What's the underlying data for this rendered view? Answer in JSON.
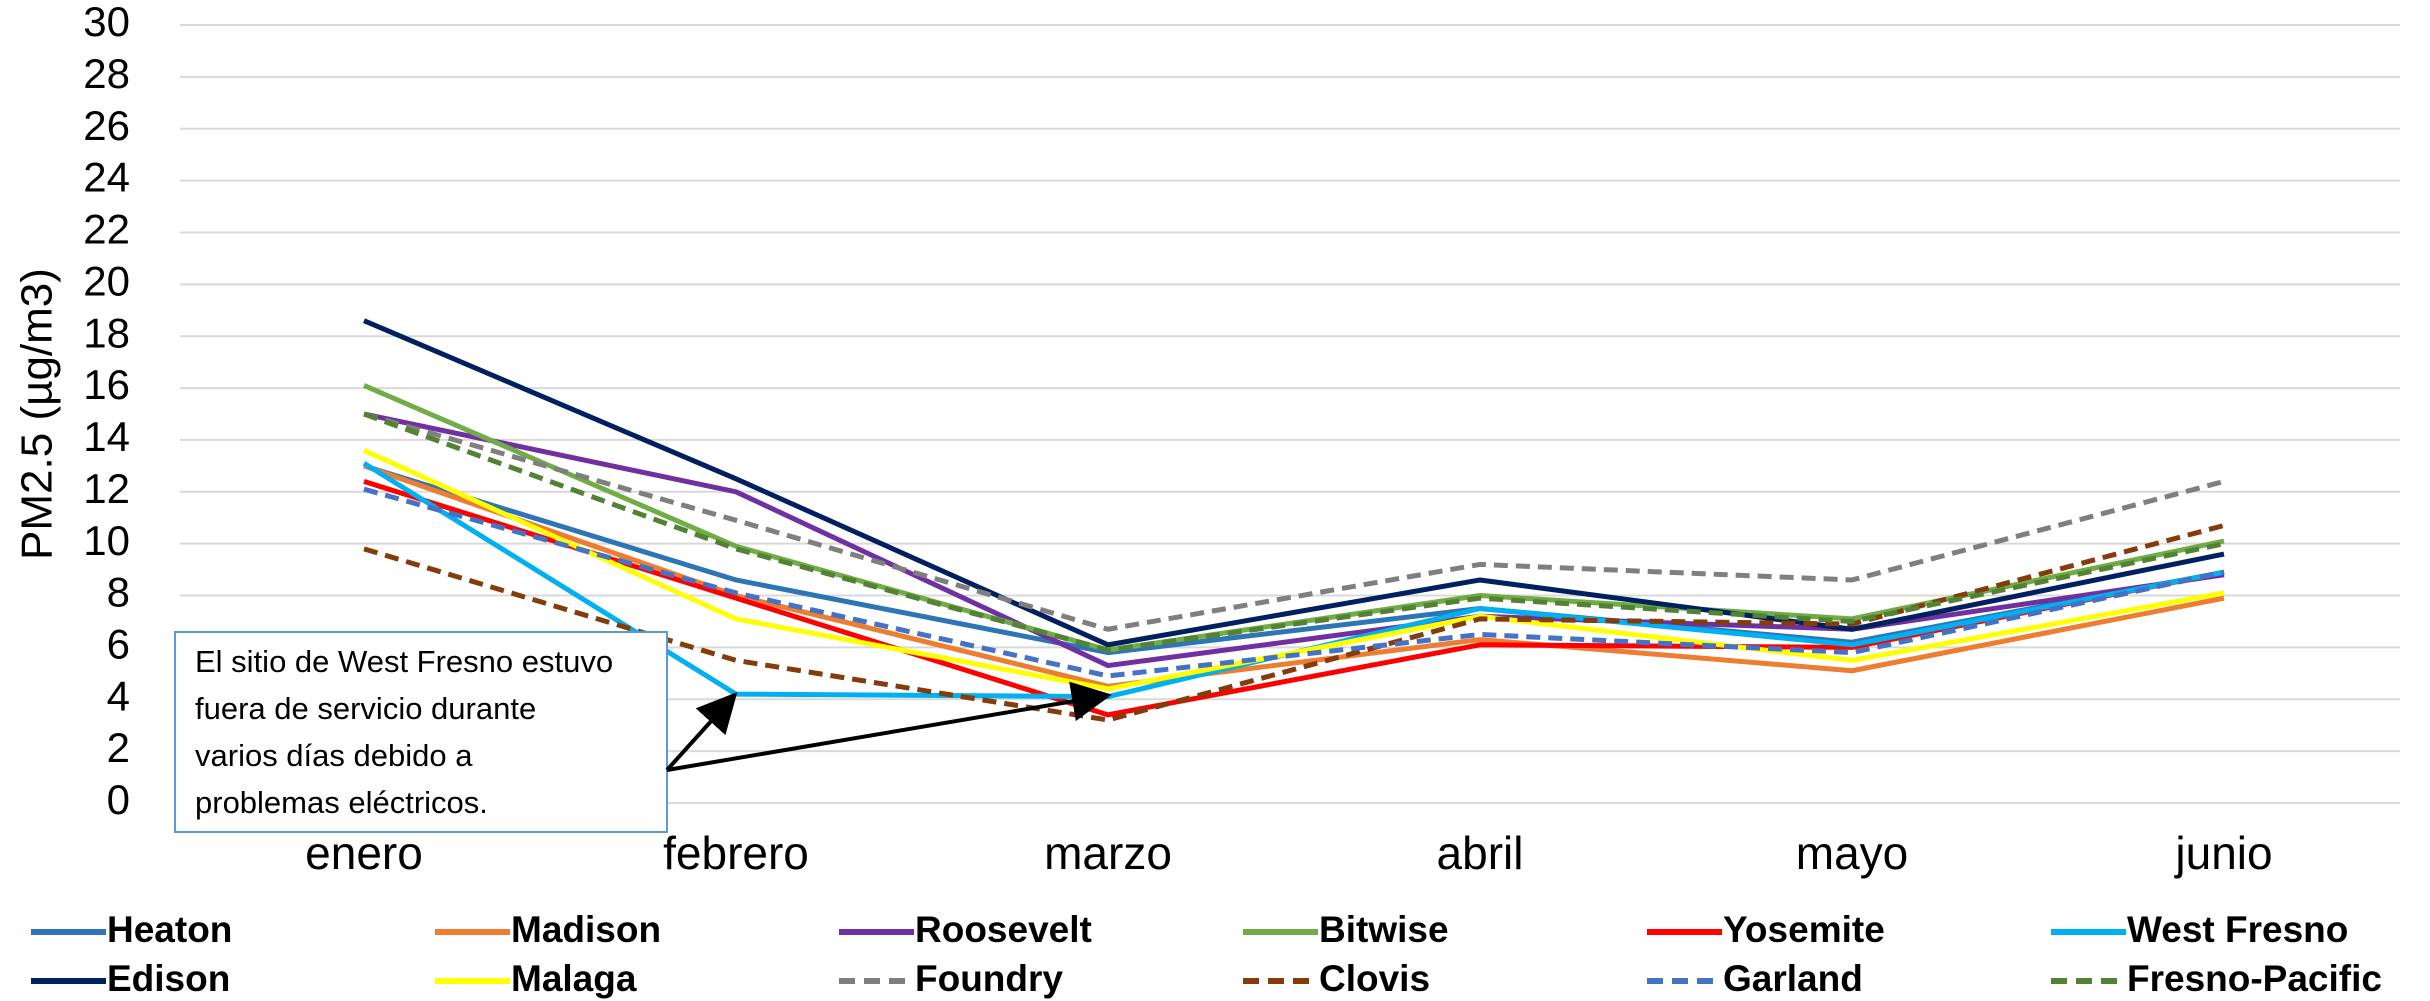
{
  "chart_data": {
    "type": "line",
    "ylabel": "PM2.5 (µg/m3)",
    "categories": [
      "enero",
      "febrero",
      "marzo",
      "abril",
      "mayo",
      "junio"
    ],
    "ylim": [
      0,
      30
    ],
    "yticks": [
      0,
      2,
      4,
      6,
      8,
      10,
      12,
      14,
      16,
      18,
      20,
      22,
      24,
      26,
      28,
      30
    ],
    "grid": true,
    "legend": "bottom",
    "series": [
      {
        "name": "Heaton",
        "color": "#2e75b6",
        "values": [
          13.0,
          8.6,
          5.8,
          7.5,
          6.2,
          8.9
        ]
      },
      {
        "name": "Madison",
        "color": "#ed7d31",
        "values": [
          13.0,
          8.0,
          4.5,
          6.3,
          5.1,
          7.9
        ]
      },
      {
        "name": "Roosevelt",
        "color": "#7030a0",
        "values": [
          15.0,
          12.0,
          5.3,
          7.2,
          6.7,
          8.8
        ]
      },
      {
        "name": "Bitwise",
        "color": "#70ad47",
        "values": [
          16.1,
          9.9,
          5.9,
          8.0,
          7.1,
          10.1
        ]
      },
      {
        "name": "Yosemite",
        "color": "#ff0000",
        "values": [
          12.4,
          7.9,
          3.4,
          6.1,
          6.0,
          8.9
        ]
      },
      {
        "name": "West Fresno",
        "color": "#00b0f0",
        "values": [
          13.1,
          4.2,
          4.1,
          7.5,
          6.1,
          8.9
        ]
      },
      {
        "name": "Edison",
        "color": "#002060",
        "values": [
          18.6,
          12.5,
          6.1,
          8.6,
          6.7,
          9.6
        ]
      },
      {
        "name": "Malaga",
        "color": "#ffff00",
        "values": [
          13.6,
          7.1,
          4.4,
          7.2,
          5.5,
          8.1
        ]
      },
      {
        "name": "Foundry",
        "color": "#7f7f7f",
        "dashed": true,
        "values": [
          15.0,
          10.9,
          6.7,
          9.2,
          8.6,
          12.4
        ]
      },
      {
        "name": "Clovis",
        "color": "#843c0c",
        "dashed": true,
        "values": [
          9.8,
          5.5,
          3.2,
          7.1,
          6.9,
          10.7
        ]
      },
      {
        "name": "Garland",
        "color": "#4472c4",
        "dashed": true,
        "values": [
          12.1,
          8.1,
          4.9,
          6.5,
          5.8,
          8.9
        ]
      },
      {
        "name": "Fresno-Pacific",
        "color": "#548235",
        "dashed": true,
        "values": [
          15.0,
          9.8,
          5.9,
          7.9,
          7.0,
          10.0
        ]
      }
    ],
    "annotation": {
      "lines": [
        "El sitio de West Fresno estuvo",
        "fuera de servicio durante",
        "varios días debido a",
        "problemas eléctricos."
      ]
    }
  }
}
